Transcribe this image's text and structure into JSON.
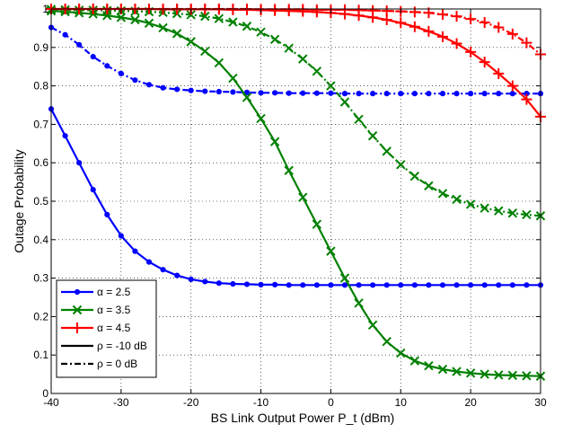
{
  "chart_data": {
    "type": "line",
    "xlabel": "BS Link Output Power P_t  (dBm)",
    "ylabel": "Outage Probability",
    "xlim": [
      -40,
      30
    ],
    "ylim": [
      0,
      1
    ],
    "xticks": [
      "-40",
      "-30",
      "-20",
      "-10",
      "0",
      "10",
      "20",
      "30"
    ],
    "yticks": [
      "0",
      "0.1",
      "0.2",
      "0.3",
      "0.4",
      "0.5",
      "0.6",
      "0.7",
      "0.8",
      "0.9",
      "1"
    ],
    "grid": true,
    "legend_position": "bottom-left",
    "legend": [
      {
        "label": "α = 2.5",
        "color": "#0000ff",
        "marker": "dot",
        "style": "solid"
      },
      {
        "label": "α = 3.5",
        "color": "#008000",
        "marker": "x",
        "style": "solid"
      },
      {
        "label": "α = 4.5",
        "color": "#ff0000",
        "marker": "plus",
        "style": "solid"
      },
      {
        "label": "ρ = -10 dB",
        "color": "#000000",
        "marker": "none",
        "style": "solid"
      },
      {
        "label": "ρ = 0 dB",
        "color": "#000000",
        "marker": "none",
        "style": "dashdot"
      }
    ],
    "series": [
      {
        "alpha": "2.5",
        "rho": "-10 dB",
        "color": "#0000ff",
        "marker": "dot",
        "style": "solid",
        "x": [
          -40,
          -38,
          -36,
          -34,
          -32,
          -30,
          -28,
          -26,
          -24,
          -22,
          -20,
          -18,
          -16,
          -14,
          -12,
          -10,
          -8,
          -6,
          -4,
          -2,
          0,
          2,
          4,
          6,
          8,
          10,
          12,
          14,
          16,
          18,
          20,
          22,
          24,
          26,
          28,
          30
        ],
        "y": [
          0.74,
          0.67,
          0.6,
          0.53,
          0.465,
          0.41,
          0.37,
          0.342,
          0.322,
          0.307,
          0.297,
          0.291,
          0.287,
          0.285,
          0.284,
          0.283,
          0.283,
          0.282,
          0.282,
          0.282,
          0.282,
          0.282,
          0.282,
          0.282,
          0.282,
          0.282,
          0.282,
          0.282,
          0.282,
          0.282,
          0.282,
          0.282,
          0.282,
          0.282,
          0.282,
          0.282
        ]
      },
      {
        "alpha": "2.5",
        "rho": "0 dB",
        "color": "#0000ff",
        "marker": "dot",
        "style": "dashdot",
        "x": [
          -40,
          -38,
          -36,
          -34,
          -32,
          -30,
          -28,
          -26,
          -24,
          -22,
          -20,
          -18,
          -16,
          -14,
          -12,
          -10,
          -8,
          -6,
          -4,
          -2,
          0,
          2,
          4,
          6,
          8,
          10,
          12,
          14,
          16,
          18,
          20,
          22,
          24,
          26,
          28,
          30
        ],
        "y": [
          0.952,
          0.933,
          0.907,
          0.876,
          0.852,
          0.832,
          0.815,
          0.803,
          0.795,
          0.791,
          0.788,
          0.786,
          0.785,
          0.784,
          0.783,
          0.782,
          0.782,
          0.781,
          0.781,
          0.781,
          0.781,
          0.78,
          0.78,
          0.78,
          0.78,
          0.78,
          0.78,
          0.78,
          0.78,
          0.78,
          0.78,
          0.78,
          0.78,
          0.78,
          0.78,
          0.78
        ]
      },
      {
        "alpha": "3.5",
        "rho": "-10 dB",
        "color": "#008000",
        "marker": "x",
        "style": "solid",
        "x": [
          -40,
          -38,
          -36,
          -34,
          -32,
          -30,
          -28,
          -26,
          -24,
          -22,
          -20,
          -18,
          -16,
          -14,
          -12,
          -10,
          -8,
          -6,
          -4,
          -2,
          0,
          2,
          4,
          6,
          8,
          10,
          12,
          14,
          16,
          18,
          20,
          22,
          24,
          26,
          28,
          30
        ],
        "y": [
          0.995,
          0.993,
          0.99,
          0.987,
          0.983,
          0.978,
          0.972,
          0.963,
          0.951,
          0.936,
          0.915,
          0.89,
          0.86,
          0.82,
          0.77,
          0.715,
          0.655,
          0.58,
          0.51,
          0.44,
          0.37,
          0.3,
          0.235,
          0.178,
          0.135,
          0.105,
          0.085,
          0.072,
          0.063,
          0.057,
          0.053,
          0.05,
          0.048,
          0.047,
          0.046,
          0.045
        ]
      },
      {
        "alpha": "3.5",
        "rho": "0 dB",
        "color": "#008000",
        "marker": "x",
        "style": "dashdot",
        "x": [
          -40,
          -38,
          -36,
          -34,
          -32,
          -30,
          -28,
          -26,
          -24,
          -22,
          -20,
          -18,
          -16,
          -14,
          -12,
          -10,
          -8,
          -6,
          -4,
          -2,
          0,
          2,
          4,
          6,
          8,
          10,
          12,
          14,
          16,
          18,
          20,
          22,
          24,
          26,
          28,
          30
        ],
        "y": [
          0.999,
          0.998,
          0.997,
          0.997,
          0.996,
          0.995,
          0.994,
          0.993,
          0.991,
          0.988,
          0.985,
          0.981,
          0.975,
          0.966,
          0.955,
          0.94,
          0.921,
          0.898,
          0.87,
          0.838,
          0.8,
          0.758,
          0.713,
          0.67,
          0.63,
          0.595,
          0.565,
          0.54,
          0.52,
          0.505,
          0.492,
          0.482,
          0.475,
          0.469,
          0.465,
          0.462
        ]
      },
      {
        "alpha": "4.5",
        "rho": "-10 dB",
        "color": "#ff0000",
        "marker": "plus",
        "style": "solid",
        "x": [
          -40,
          -38,
          -36,
          -34,
          -32,
          -30,
          -28,
          -26,
          -24,
          -22,
          -20,
          -18,
          -16,
          -14,
          -12,
          -10,
          -8,
          -6,
          -4,
          -2,
          0,
          2,
          4,
          6,
          8,
          10,
          12,
          14,
          16,
          18,
          20,
          22,
          24,
          26,
          28,
          30
        ],
        "y": [
          1,
          1,
          1,
          1,
          1,
          1,
          1,
          1,
          0.999,
          0.999,
          0.999,
          0.999,
          0.999,
          0.998,
          0.998,
          0.997,
          0.996,
          0.995,
          0.994,
          0.992,
          0.99,
          0.987,
          0.983,
          0.978,
          0.972,
          0.964,
          0.954,
          0.942,
          0.928,
          0.91,
          0.888,
          0.862,
          0.832,
          0.8,
          0.765,
          0.72
        ]
      },
      {
        "alpha": "4.5",
        "rho": "0 dB",
        "color": "#ff0000",
        "marker": "plus",
        "style": "dashdot",
        "x": [
          -40,
          -38,
          -36,
          -34,
          -32,
          -30,
          -28,
          -26,
          -24,
          -22,
          -20,
          -18,
          -16,
          -14,
          -12,
          -10,
          -8,
          -6,
          -4,
          -2,
          0,
          2,
          4,
          6,
          8,
          10,
          12,
          14,
          16,
          18,
          20,
          22,
          24,
          26,
          28,
          30
        ],
        "y": [
          1,
          1,
          1,
          1,
          1,
          1,
          1,
          1,
          1,
          1,
          1,
          1,
          1,
          1,
          1,
          0.999,
          0.999,
          0.999,
          0.999,
          0.998,
          0.998,
          0.998,
          0.997,
          0.996,
          0.995,
          0.994,
          0.992,
          0.99,
          0.986,
          0.981,
          0.974,
          0.965,
          0.952,
          0.935,
          0.912,
          0.882
        ]
      }
    ]
  }
}
